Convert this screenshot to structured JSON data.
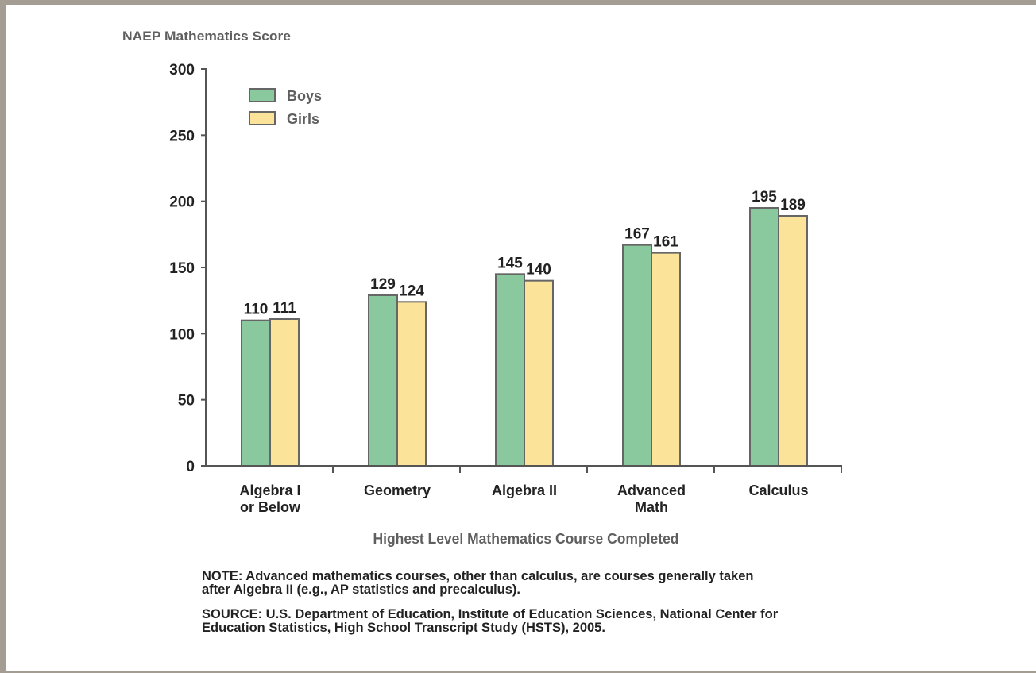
{
  "chart_data": {
    "type": "bar",
    "ylabel": "NAEP Mathematics Score",
    "xlabel": "Highest Level Mathematics Course Completed",
    "ylim": [
      0,
      300
    ],
    "yticks": [
      0,
      50,
      100,
      150,
      200,
      250,
      300
    ],
    "categories": [
      [
        "Algebra I",
        "or Below"
      ],
      [
        "Geometry"
      ],
      [
        "Algebra II"
      ],
      [
        "Advanced",
        "Math"
      ],
      [
        "Calculus"
      ]
    ],
    "series": [
      {
        "name": "Boys",
        "color": "#8ac89e",
        "values": [
          110,
          129,
          145,
          167,
          195
        ]
      },
      {
        "name": "Girls",
        "color": "#fbe49a",
        "values": [
          111,
          124,
          140,
          161,
          189
        ]
      }
    ],
    "legend_position": "top-left",
    "grid": false
  },
  "notes": {
    "note_line1": "NOTE:  Advanced mathematics courses, other than calculus, are courses generally taken",
    "note_line2": "after Algebra II (e.g., AP statistics and precalculus).",
    "source_line1": "SOURCE:  U.S. Department of Education, Institute of Education Sciences, National Center for",
    "source_line2": "Education Statistics, High School Transcript Study (HSTS), 2005."
  }
}
